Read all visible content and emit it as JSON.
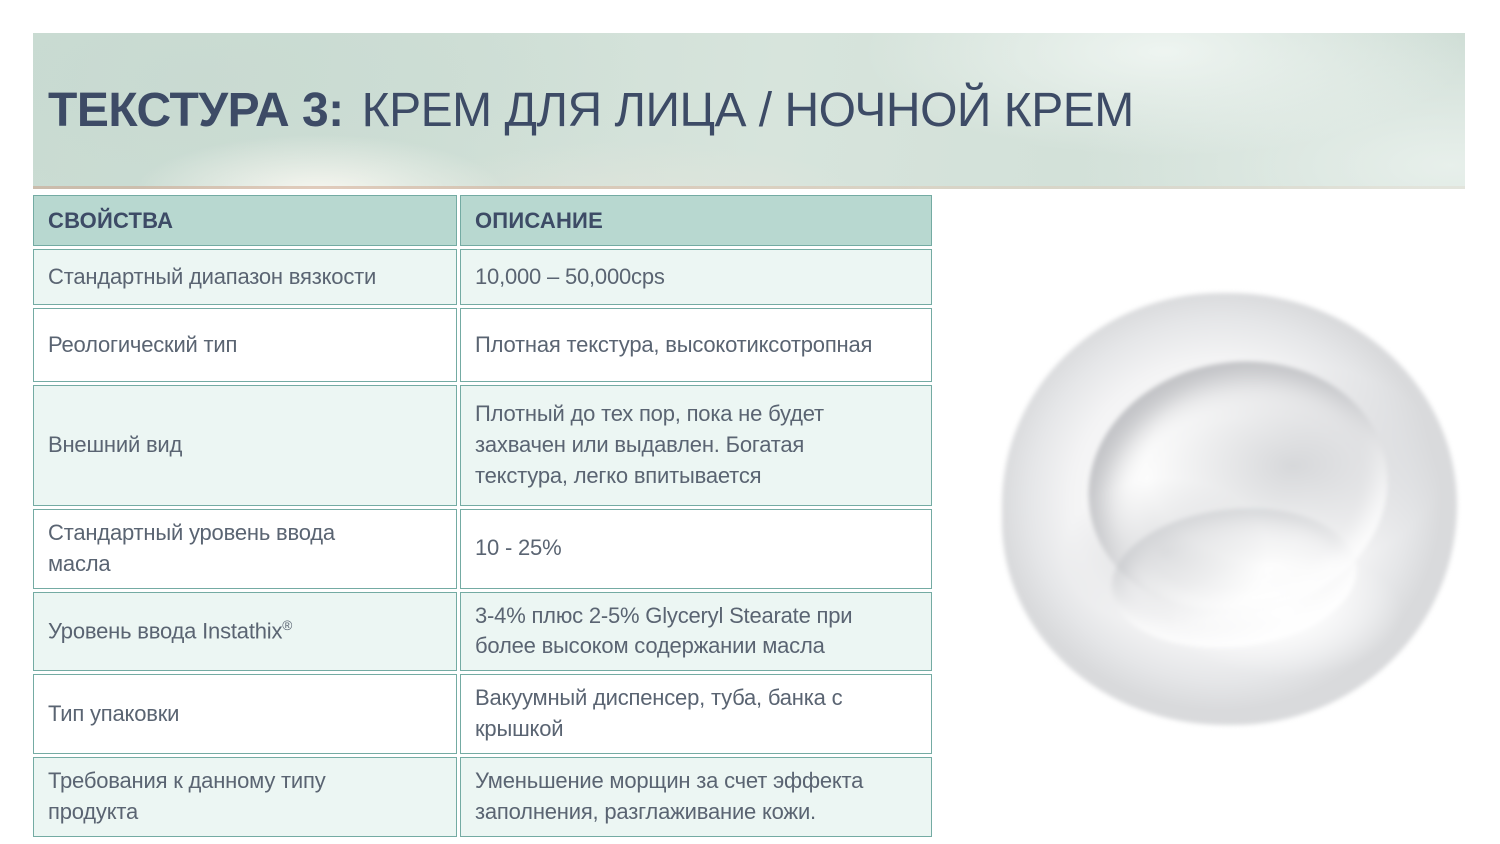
{
  "header": {
    "title_label": "ТЕКСТУРА 3:",
    "title_text": "КРЕМ ДЛЯ ЛИЦА / НОЧНОЙ КРЕМ"
  },
  "table": {
    "columns": [
      "СВОЙСТВА",
      "ОПИСАНИЕ"
    ],
    "rows": [
      {
        "property": "Стандартный диапазон вязкости",
        "description": "10,000 – 50,000cps"
      },
      {
        "property": "Реологический тип",
        "description": "Плотная текстура, высокотиксотропная"
      },
      {
        "property": "Внешний вид",
        "description": "Плотный до тех пор, пока не будет\nзахвачен или выдавлен. Богатая\nтекстура, легко впитывается"
      },
      {
        "property": "Стандартный уровень ввода\nмасла",
        "description": "10 - 25%"
      },
      {
        "property": "Уровень ввода Instathix®",
        "description": "3-4% плюс 2-5% Glyceryl Stearate при\nболее высоком содержании масла"
      },
      {
        "property": "Тип упаковки",
        "description": "Вакуумный диспенсер, туба, банка с\nкрышкой"
      },
      {
        "property": "Требования к данному типу\nпродукта",
        "description": "Уменьшение морщин за счет эффекта\nзаполнения, разглаживание кожи."
      }
    ]
  },
  "image": {
    "name": "cream-swatch"
  },
  "colors": {
    "band_fill": "#d3e1d9",
    "band_bottom_line": "#d6b49e",
    "table_header_fill": "#b8d8d0",
    "table_border": "#74aba3",
    "row_alt_fill": "#ecf6f3",
    "row_fill": "#ffffff",
    "title_color": "#3d4b66",
    "body_text_color": "#5a6472"
  }
}
